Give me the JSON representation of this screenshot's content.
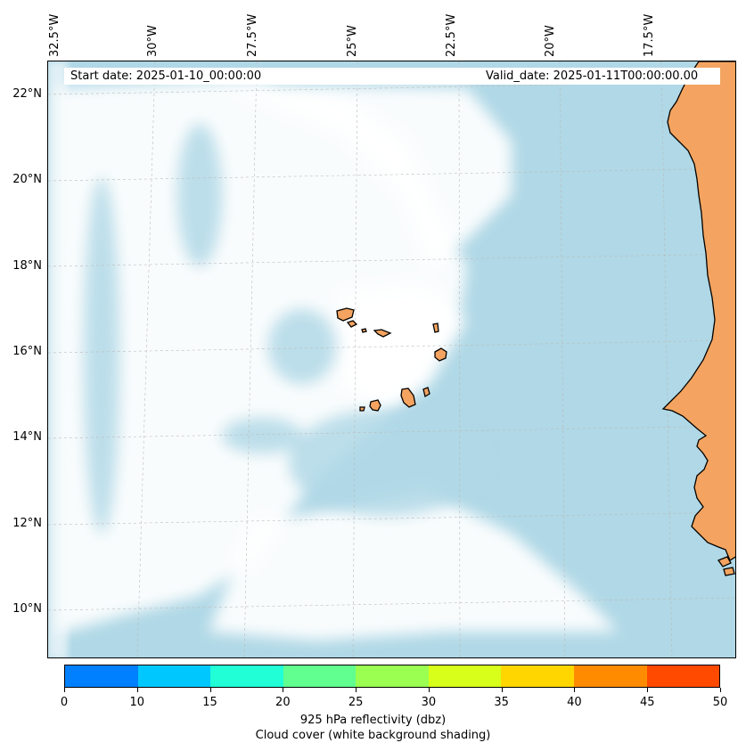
{
  "header": {
    "start_date": "Start date: 2025-01-10_00:00:00",
    "valid_date": "Valid_date: 2025-01-11T00:00:00.00"
  },
  "map": {
    "lat_labels": [
      "22°N",
      "20°N",
      "18°N",
      "16°N",
      "14°N",
      "12°N",
      "10°N"
    ],
    "lon_labels": [
      "32.5°W",
      "30°W",
      "27.5°W",
      "25°W",
      "22.5°W",
      "20°W",
      "17.5°W"
    ],
    "colors": {
      "ocean_background": "#b0d8e6",
      "cloud_white": "#ffffff",
      "land_fill": "#f4a460",
      "coastline": "#000000",
      "gridline": "#bbbbbb"
    },
    "features": [
      "cape-verde-islands",
      "west-africa-coast",
      "cloud-cover-shading"
    ]
  },
  "colorbar": {
    "ticks": [
      "0",
      "10",
      "15",
      "20",
      "25",
      "30",
      "35",
      "40",
      "45",
      "50"
    ],
    "colors": [
      "#0080ff",
      "#00c8ff",
      "#20ffd6",
      "#60ff90",
      "#9aff50",
      "#d8ff1a",
      "#ffd600",
      "#ff8c00",
      "#ff4a00"
    ],
    "label_line1": "925 hPa reflectivity (dbz)",
    "label_line2": "Cloud cover (white background shading)"
  }
}
